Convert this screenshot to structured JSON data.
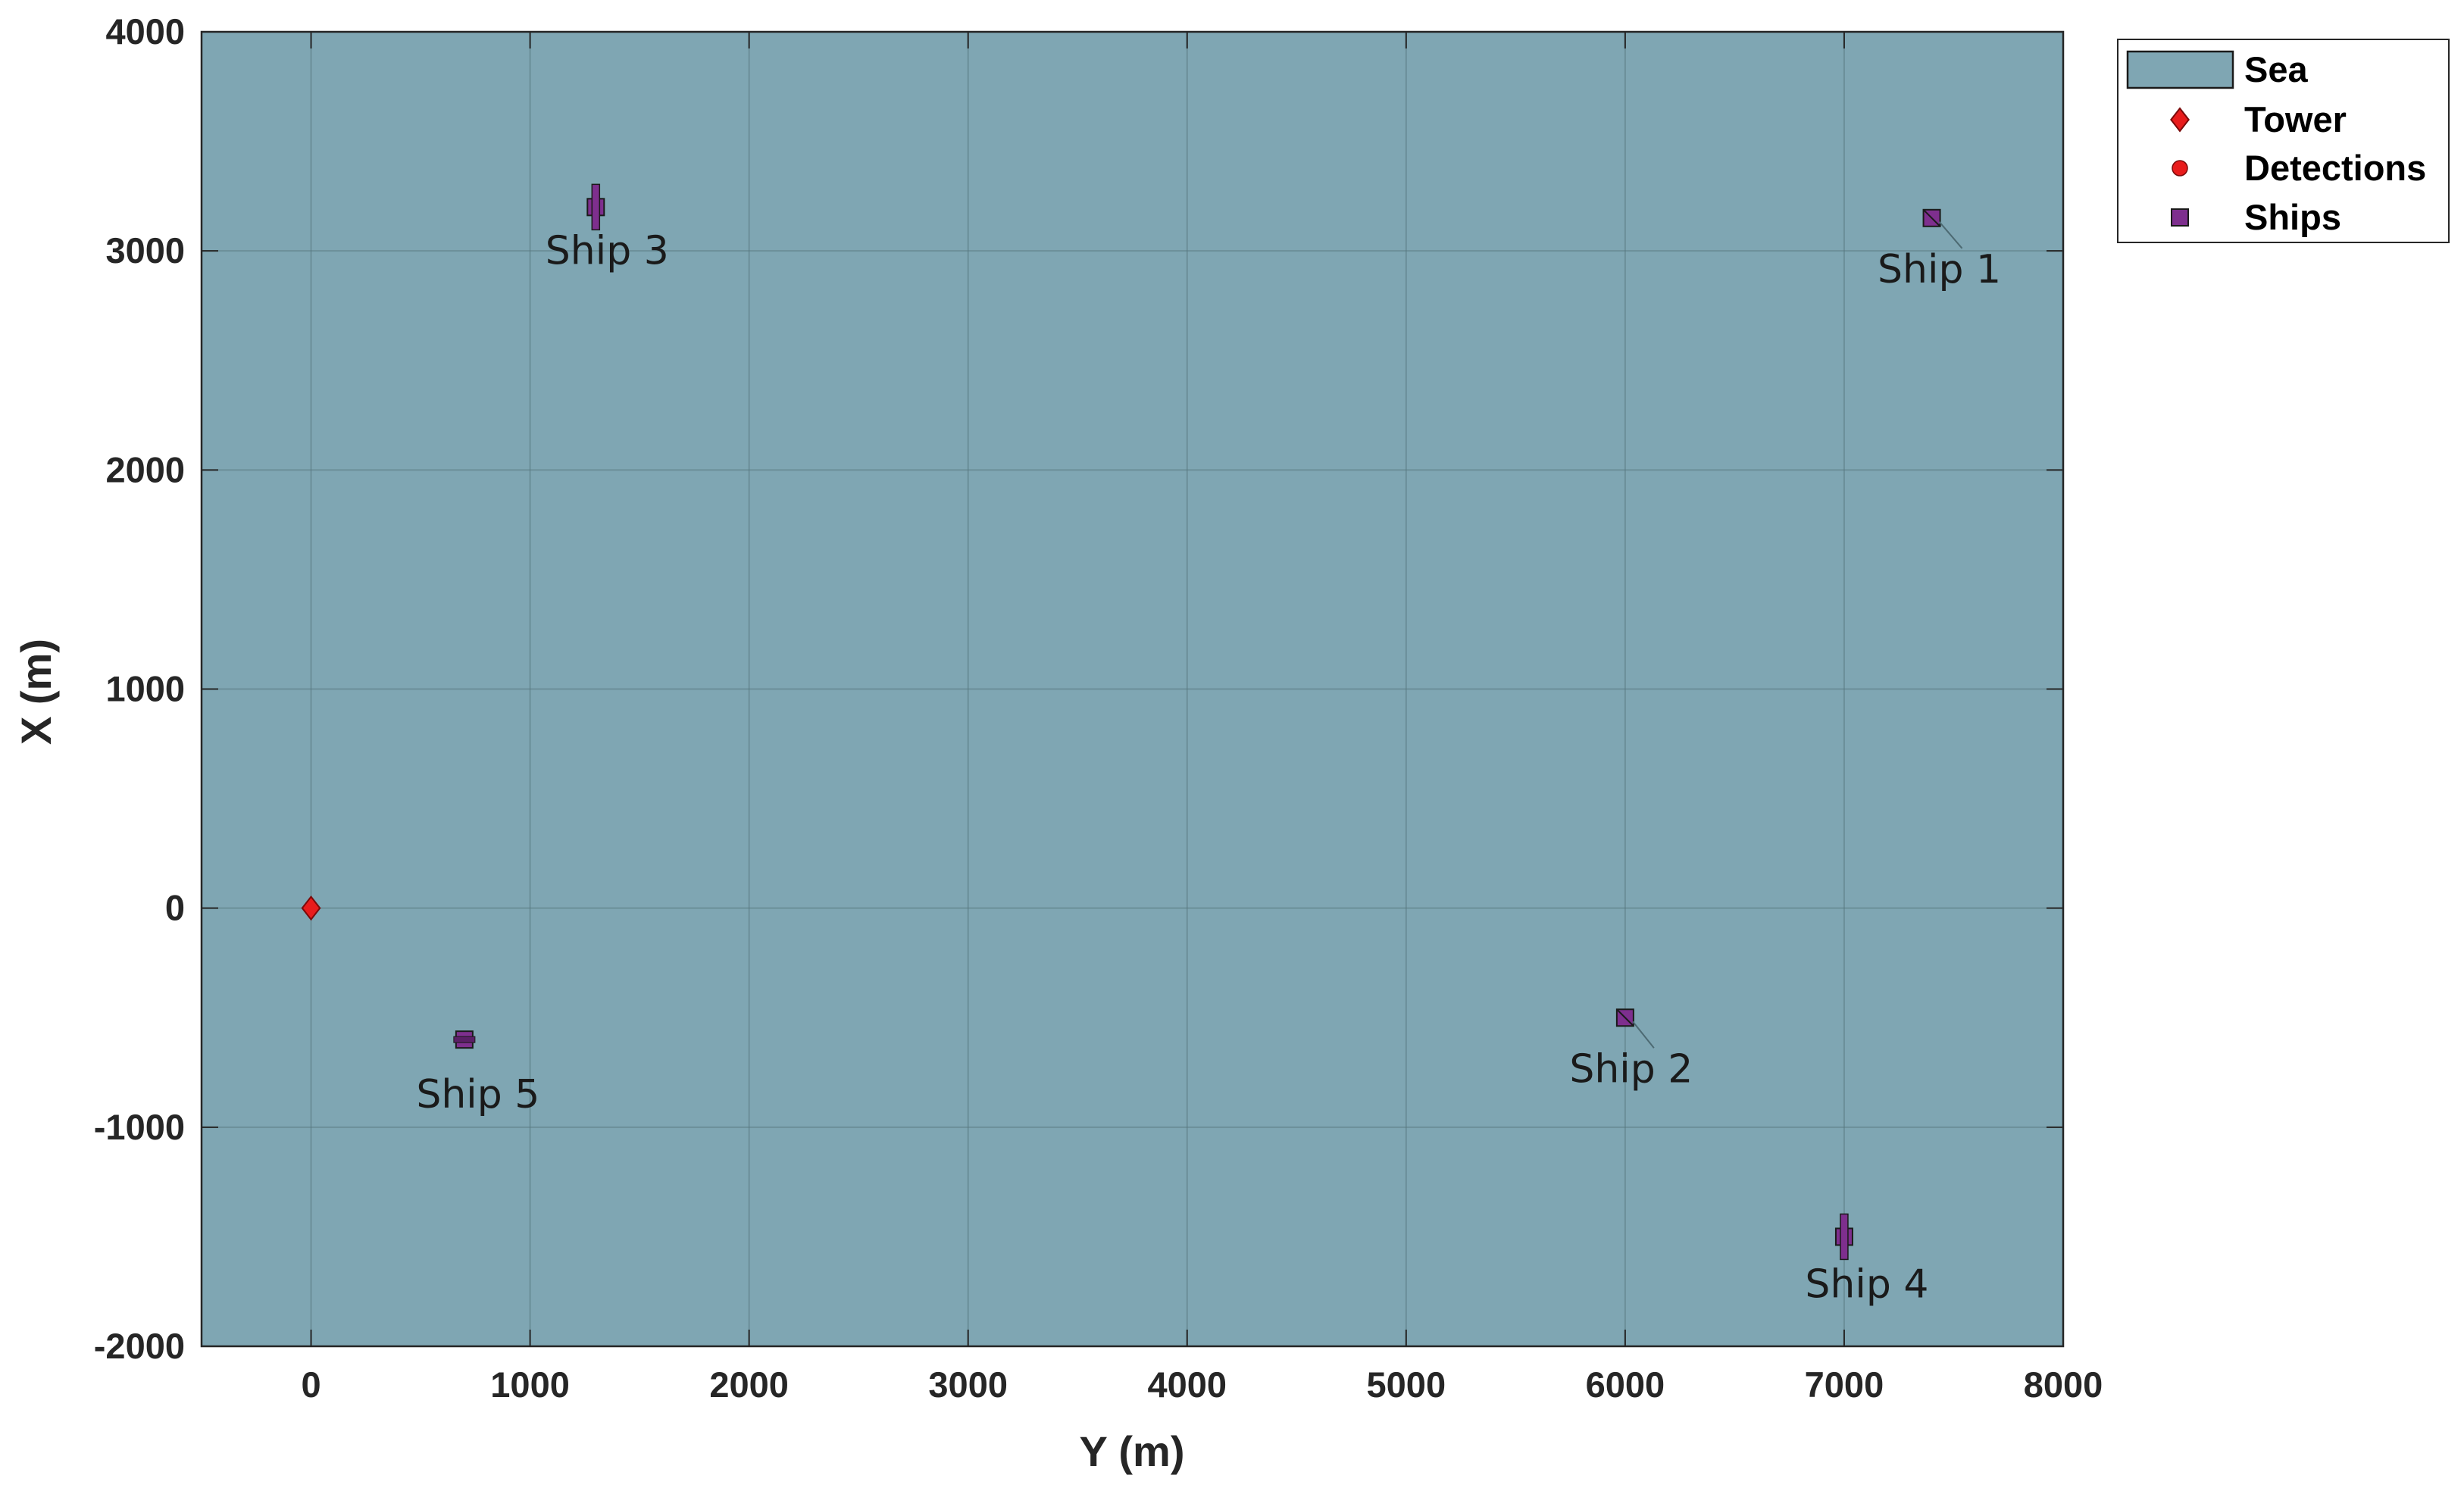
{
  "chart_data": {
    "type": "scatter",
    "title": "",
    "xlabel": "Y (m)",
    "ylabel": "X (m)",
    "xlim": [
      -500,
      8000
    ],
    "ylim": [
      -2000,
      4000
    ],
    "x_ticks": [
      0,
      1000,
      2000,
      3000,
      4000,
      5000,
      6000,
      7000,
      8000
    ],
    "y_ticks": [
      -2000,
      -1000,
      0,
      1000,
      2000,
      3000,
      4000
    ],
    "x_tick_labels": [
      "0",
      "1000",
      "2000",
      "3000",
      "4000",
      "5000",
      "6000",
      "7000",
      "8000"
    ],
    "y_tick_labels": [
      "-2000",
      "-1000",
      "0",
      "1000",
      "2000",
      "3000",
      "4000"
    ],
    "grid": true,
    "legend_position": "outside-top-right",
    "background_region": {
      "name": "Sea",
      "color": "#7fa6b3"
    },
    "legend": [
      {
        "label": "Sea",
        "symbol": "patch",
        "color": "#7fa6b3"
      },
      {
        "label": "Tower",
        "symbol": "diamond",
        "color": "#e81c1c"
      },
      {
        "label": "Detections",
        "symbol": "circle",
        "color": "#e81c1c"
      },
      {
        "label": "Ships",
        "symbol": "square",
        "color": "#7e2f8e"
      }
    ],
    "series": [
      {
        "name": "Tower",
        "marker": "diamond",
        "color": "#e81c1c",
        "points": [
          {
            "x": 0,
            "y": 0
          }
        ]
      },
      {
        "name": "Detections",
        "marker": "circle",
        "color": "#e81c1c",
        "points": []
      },
      {
        "name": "Ships",
        "marker": "square",
        "color": "#7e2f8e",
        "points": [
          {
            "label": "Ship 1",
            "x": 7400,
            "y": 3150,
            "orientation": "diagonal"
          },
          {
            "label": "Ship 2",
            "x": 6000,
            "y": -500,
            "orientation": "diagonal"
          },
          {
            "label": "Ship 3",
            "x": 1300,
            "y": 3200,
            "orientation": "vertical"
          },
          {
            "label": "Ship 4",
            "x": 7000,
            "y": -1500,
            "orientation": "vertical"
          },
          {
            "label": "Ship 5",
            "x": 700,
            "y": -600,
            "orientation": "horizontal"
          }
        ]
      }
    ]
  }
}
